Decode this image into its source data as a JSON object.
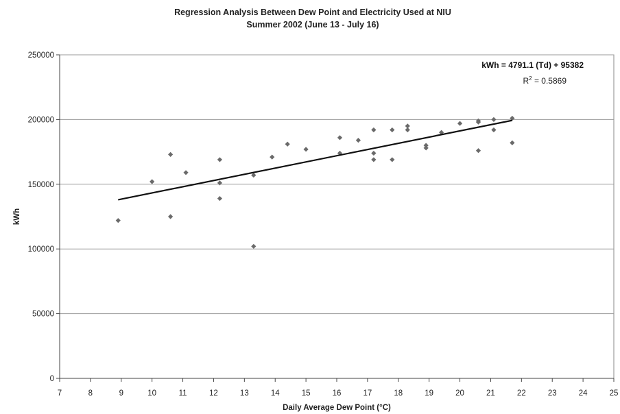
{
  "chart_data": {
    "type": "scatter",
    "title": "Regression Analysis Between Dew Point and Electricity Used at NIU",
    "subtitle": "Summer 2002 (June 13 - July 16)",
    "xlabel": "Daily Average Dew Point (°C)",
    "ylabel": "kWh",
    "xlim": [
      7,
      25
    ],
    "ylim": [
      0,
      250000
    ],
    "x_ticks": [
      "7",
      "8",
      "9",
      "10",
      "11",
      "12",
      "13",
      "14",
      "15",
      "16",
      "17",
      "18",
      "19",
      "20",
      "21",
      "22",
      "23",
      "24",
      "25"
    ],
    "y_ticks": [
      "0",
      "50000",
      "100000",
      "150000",
      "200000",
      "250000"
    ],
    "grid": "horizontal",
    "legend": "none",
    "point_color": "#6a6a6a",
    "trendline_color": "#111111",
    "points": [
      {
        "x": 8.9,
        "y": 122000
      },
      {
        "x": 10.0,
        "y": 152000
      },
      {
        "x": 10.6,
        "y": 173000
      },
      {
        "x": 10.6,
        "y": 125000
      },
      {
        "x": 11.1,
        "y": 159000
      },
      {
        "x": 12.2,
        "y": 169000
      },
      {
        "x": 12.2,
        "y": 151000
      },
      {
        "x": 12.2,
        "y": 139000
      },
      {
        "x": 13.3,
        "y": 157000
      },
      {
        "x": 13.3,
        "y": 102000
      },
      {
        "x": 13.9,
        "y": 171000
      },
      {
        "x": 14.4,
        "y": 181000
      },
      {
        "x": 15.0,
        "y": 177000
      },
      {
        "x": 16.1,
        "y": 186000
      },
      {
        "x": 16.1,
        "y": 174000
      },
      {
        "x": 16.7,
        "y": 184000
      },
      {
        "x": 17.2,
        "y": 192000
      },
      {
        "x": 17.2,
        "y": 174000
      },
      {
        "x": 17.2,
        "y": 169000
      },
      {
        "x": 17.8,
        "y": 192000
      },
      {
        "x": 17.8,
        "y": 169000
      },
      {
        "x": 18.3,
        "y": 195000
      },
      {
        "x": 18.3,
        "y": 192000
      },
      {
        "x": 18.9,
        "y": 180000
      },
      {
        "x": 18.9,
        "y": 178000
      },
      {
        "x": 19.4,
        "y": 190000
      },
      {
        "x": 20.0,
        "y": 197000
      },
      {
        "x": 20.6,
        "y": 199000
      },
      {
        "x": 20.6,
        "y": 198000
      },
      {
        "x": 20.6,
        "y": 176000
      },
      {
        "x": 21.1,
        "y": 200000
      },
      {
        "x": 21.1,
        "y": 192000
      },
      {
        "x": 21.7,
        "y": 201000
      },
      {
        "x": 21.7,
        "y": 182000
      }
    ],
    "trendline": {
      "slope": 4791.1,
      "intercept": 95382,
      "x_range": [
        8.9,
        21.7
      ],
      "equation": "kWh = 4791.1 (Td) + 95382",
      "r2_prefix": "R",
      "r2_exponent": "2",
      "r2_suffix": " = 0.5869"
    }
  }
}
